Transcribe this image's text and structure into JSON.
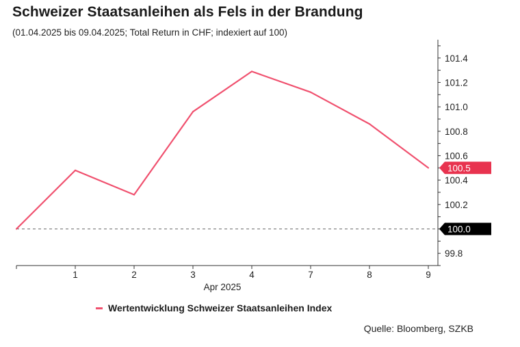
{
  "title": "Schweizer Staatsanleihen als Fels in der Brandung",
  "subtitle": "(01.04.2025 bis 09.04.2025; Total Return in CHF; indexiert auf 100)",
  "source": "Quelle: Bloomberg, SZKB",
  "colors": {
    "series": "#f0506e",
    "last_label_bg": "#e8334f",
    "baseline_label_bg": "#000000"
  },
  "chart_data": {
    "type": "line",
    "x": [
      "1",
      "2",
      "3",
      "4",
      "7",
      "8",
      "9"
    ],
    "x_start_value": 100.0,
    "xlabel": "Apr 2025",
    "ylim": [
      99.7,
      101.55
    ],
    "yticks": [
      "99.8",
      "100.2",
      "100.4",
      "100.6",
      "100.8",
      "101.0",
      "101.2",
      "101.4"
    ],
    "y_axis_position": "right",
    "baseline": {
      "value": 100.0,
      "label": "100.0"
    },
    "last_value_label": "100.5",
    "series": [
      {
        "name": "Wertentwicklung Schweizer Staatsanleihen Index",
        "values": [
          100.48,
          100.28,
          100.96,
          101.29,
          101.12,
          100.86,
          100.5
        ]
      }
    ],
    "legend_position": "bottom",
    "grid": false
  }
}
